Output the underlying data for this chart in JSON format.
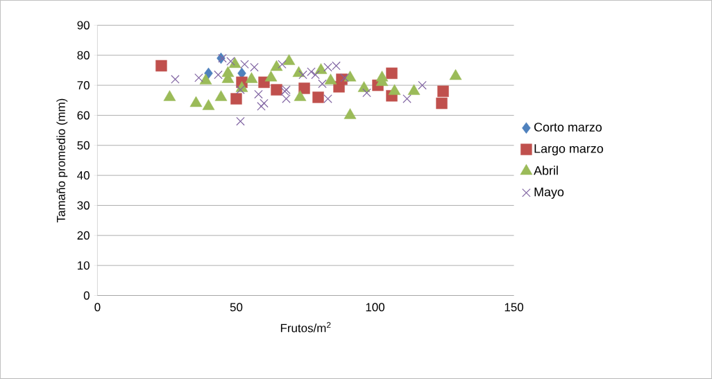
{
  "chart_data": {
    "type": "scatter",
    "xlabel": "Frutos/m$^{2}$",
    "ylabel": "Tamaño promedio (mm)",
    "xlim": [
      0,
      150
    ],
    "xticks": [
      0,
      50,
      100,
      150
    ],
    "ylim": [
      0,
      90
    ],
    "yticks": [
      0,
      10,
      20,
      30,
      40,
      50,
      60,
      70,
      80,
      90
    ],
    "grid": "y",
    "legend": "right",
    "series": [
      {
        "name": "Corto marzo",
        "color": "#4f81bd",
        "marker": "diamond",
        "x": [
          40,
          44.5,
          52
        ],
        "values": [
          74,
          79,
          74
        ]
      },
      {
        "name": "Largo marzo",
        "color": "#c0504d",
        "marker": "square",
        "x": [
          23,
          50,
          52,
          60,
          64.5,
          74.5,
          79.5,
          87,
          88,
          101,
          106,
          106,
          124.5,
          124
        ],
        "values": [
          76.5,
          65.5,
          71,
          71,
          68.5,
          69,
          66,
          69.5,
          72,
          70,
          74,
          66.5,
          68,
          64
        ]
      },
      {
        "name": "Abril",
        "color": "#9bbb59",
        "marker": "triangle",
        "x": [
          26,
          35.5,
          40,
          39,
          44.5,
          47,
          49.5,
          47,
          52,
          55.5,
          62.5,
          64.5,
          69,
          72.5,
          73,
          80.5,
          84,
          91,
          91,
          96,
          102.5,
          102.5,
          107,
          114,
          129
        ],
        "values": [
          66,
          64,
          63,
          71.5,
          66,
          72,
          77,
          74,
          69,
          72,
          72.5,
          76,
          78,
          74,
          66,
          75,
          71.5,
          72.5,
          60,
          69,
          72.5,
          71,
          68,
          68,
          73
        ]
      },
      {
        "name": "Mayo",
        "color": "#8064a2",
        "marker": "cross",
        "x": [
          28,
          36.5,
          43.5,
          45,
          48,
          51.5,
          51.5,
          53,
          56.5,
          58,
          59,
          60,
          66.5,
          67.5,
          68,
          68,
          74,
          77,
          78.5,
          83,
          86,
          81,
          83,
          89,
          97,
          111.5,
          117
        ],
        "values": [
          72,
          72.5,
          73.5,
          79,
          78,
          68.5,
          58,
          77,
          76,
          67,
          63,
          64,
          77,
          68,
          68.5,
          65.5,
          73.5,
          74.5,
          73.5,
          76,
          76.5,
          70.5,
          65.5,
          72.5,
          67.5,
          65.5,
          70
        ]
      }
    ]
  }
}
